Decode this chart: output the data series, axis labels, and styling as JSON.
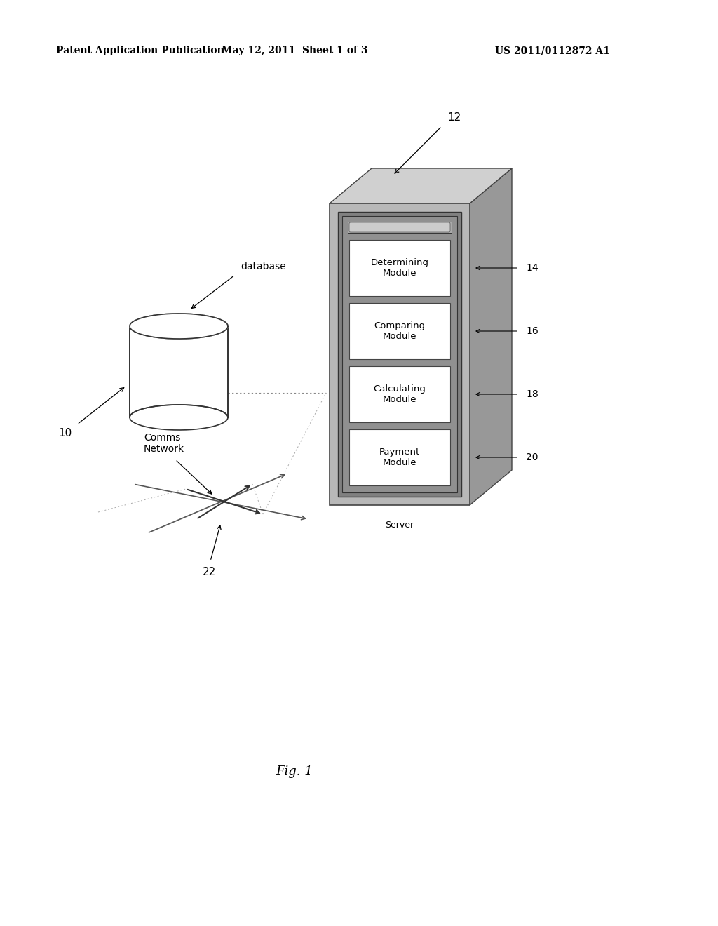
{
  "bg_color": "#ffffff",
  "header_left": "Patent Application Publication",
  "header_mid": "May 12, 2011  Sheet 1 of 3",
  "header_right": "US 2011/0112872 A1",
  "fig_label": "Fig. 1",
  "server_label": "Server",
  "server_ref": "12",
  "modules": [
    {
      "label": "Determining\nModule",
      "ref": "14"
    },
    {
      "label": "Comparing\nModule",
      "ref": "16"
    },
    {
      "label": "Calculating\nModule",
      "ref": "18"
    },
    {
      "label": "Payment\nModule",
      "ref": "20"
    }
  ],
  "db_label": "database",
  "db_ref": "10",
  "network_label": "Comms\nNetwork",
  "network_ref": "22",
  "server_front_color": "#b8b8b8",
  "server_side_color": "#989898",
  "server_top_color": "#d0d0d0",
  "server_inner_color": "#808080",
  "server_inner2_color": "#909090",
  "module_bg": "#ffffff",
  "module_edge": "#444444"
}
